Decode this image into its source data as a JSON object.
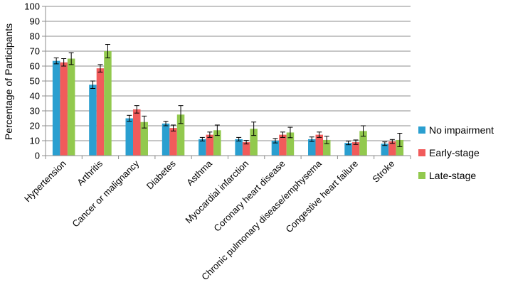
{
  "chart_data": {
    "type": "bar",
    "title": "",
    "xlabel": "",
    "ylabel": "Percentage of Participants",
    "ylim": [
      0,
      100
    ],
    "yticks": [
      0,
      10,
      20,
      30,
      40,
      50,
      60,
      70,
      80,
      90,
      100
    ],
    "grid": true,
    "legend_position": "right",
    "categories": [
      "Hypertension",
      "Arthritis",
      "Cancer or malignancy",
      "Diabetes",
      "Asthma",
      "Myocardial infarction",
      "Coronary heart disease",
      "Chronic pulmonary disease/emphysema",
      "Congestive heart failure",
      "Stroke"
    ],
    "series": [
      {
        "name": "No impairment",
        "color": "#2a9fd0",
        "values": [
          63.5,
          47.5,
          25,
          21.5,
          11,
          11,
          10,
          11,
          8.5,
          8
        ],
        "errors": [
          2,
          2.5,
          2,
          1.5,
          1.2,
          1.2,
          1.5,
          1.5,
          1.2,
          1.2
        ]
      },
      {
        "name": "Early-stage",
        "color": "#f15b5b",
        "values": [
          62.5,
          58.5,
          31,
          18.5,
          14,
          9,
          14,
          14,
          9,
          9.5
        ],
        "errors": [
          2.5,
          2.5,
          2.5,
          2,
          1.8,
          1.2,
          1.8,
          1.8,
          1.5,
          1.3
        ]
      },
      {
        "name": "Late-stage",
        "color": "#92c94e",
        "values": [
          65,
          70,
          22.5,
          27.5,
          17,
          18,
          15.5,
          10.5,
          16.5,
          10.5
        ],
        "errors": [
          4,
          4.5,
          4,
          6,
          3.5,
          4.5,
          3.5,
          2.5,
          3.5,
          4.5
        ]
      }
    ]
  }
}
